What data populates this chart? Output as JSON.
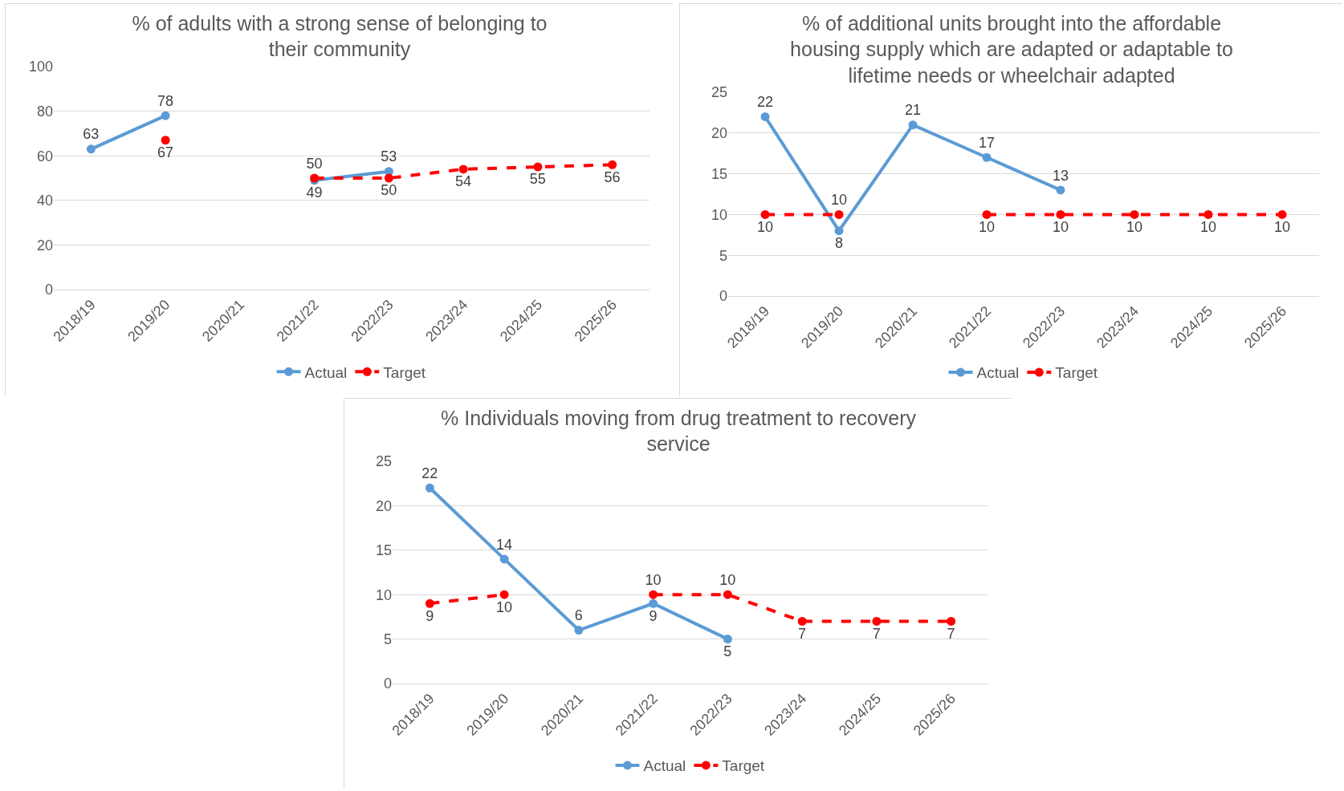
{
  "chart_data": [
    {
      "type": "line",
      "title": "% of adults with a strong sense of belonging to their community",
      "categories": [
        "2018/19",
        "2019/20",
        "2020/21",
        "2021/22",
        "2022/23",
        "2023/24",
        "2024/25",
        "2025/26"
      ],
      "series": [
        {
          "name": "Actual",
          "color": "#5b9bd5",
          "line_style": "solid",
          "values": [
            63,
            78,
            null,
            49,
            53,
            null,
            null,
            null
          ]
        },
        {
          "name": "Target",
          "color": "#ff0000",
          "line_style": "dashed",
          "values": [
            null,
            67,
            null,
            50,
            50,
            54,
            55,
            56
          ]
        }
      ],
      "ylim": [
        0,
        100
      ],
      "yticks": [
        0,
        20,
        40,
        60,
        80,
        100
      ],
      "grid": "y",
      "legend": "bottom",
      "marker": "circle",
      "data_labels": true
    },
    {
      "type": "line",
      "title": "% of additional units brought into the affordable housing supply which are adapted or adaptable to lifetime needs or wheelchair adapted",
      "categories": [
        "2018/19",
        "2019/20",
        "2020/21",
        "2021/22",
        "2022/23",
        "2023/24",
        "2024/25",
        "2025/26"
      ],
      "series": [
        {
          "name": "Actual",
          "color": "#5b9bd5",
          "line_style": "solid",
          "values": [
            22,
            8,
            21,
            17,
            13,
            null,
            null,
            null
          ]
        },
        {
          "name": "Target",
          "color": "#ff0000",
          "line_style": "dashed",
          "values": [
            10,
            10,
            null,
            10,
            10,
            10,
            10,
            10
          ]
        }
      ],
      "ylim": [
        0,
        25
      ],
      "yticks": [
        0,
        5,
        10,
        15,
        20,
        25
      ],
      "grid": "y",
      "legend": "bottom",
      "marker": "circle",
      "data_labels": true
    },
    {
      "type": "line",
      "title": "% Individuals moving from drug treatment to recovery service",
      "categories": [
        "2018/19",
        "2019/20",
        "2020/21",
        "2021/22",
        "2022/23",
        "2023/24",
        "2024/25",
        "2025/26"
      ],
      "series": [
        {
          "name": "Actual",
          "color": "#5b9bd5",
          "line_style": "solid",
          "values": [
            22,
            14,
            6,
            9,
            5,
            null,
            null,
            null
          ]
        },
        {
          "name": "Target",
          "color": "#ff0000",
          "line_style": "dashed",
          "values": [
            9,
            10,
            null,
            10,
            10,
            7,
            7,
            7
          ]
        }
      ],
      "ylim": [
        0,
        25
      ],
      "yticks": [
        0,
        5,
        10,
        15,
        20,
        25
      ],
      "grid": "y",
      "legend": "bottom",
      "marker": "circle",
      "data_labels": true
    }
  ]
}
